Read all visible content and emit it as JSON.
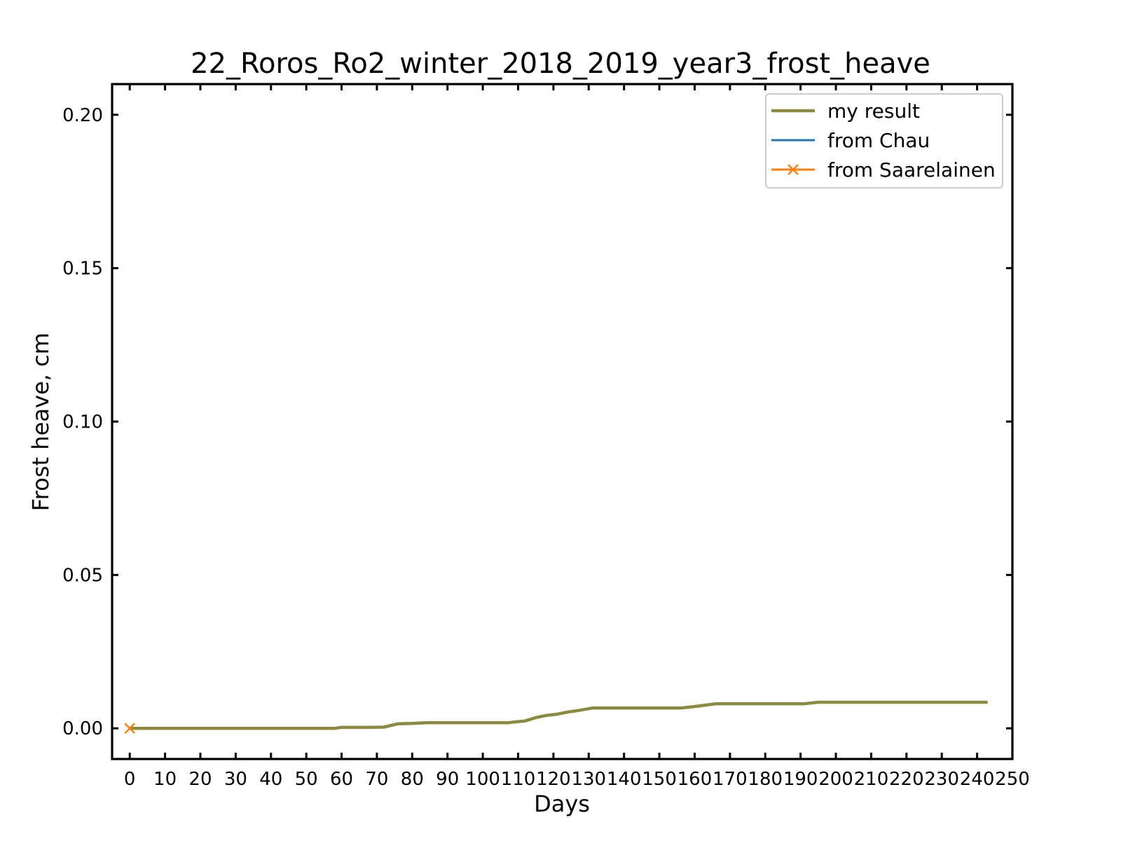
{
  "chart_data": {
    "type": "line",
    "title": "22_Roros_Ro2_winter_2018_2019_year3_frost_heave",
    "xlabel": "Days",
    "ylabel": "Frost heave, cm",
    "xlim": [
      -5,
      250
    ],
    "ylim": [
      -0.01,
      0.21
    ],
    "xticks": [
      0,
      10,
      20,
      30,
      40,
      50,
      60,
      70,
      80,
      90,
      100,
      110,
      120,
      130,
      140,
      150,
      160,
      170,
      180,
      190,
      200,
      210,
      220,
      230,
      240,
      250
    ],
    "yticks": [
      "0.00",
      "0.05",
      "0.10",
      "0.15",
      "0.20"
    ],
    "grid": false,
    "legend_position": "top-right",
    "series": [
      {
        "name": "my result",
        "color": "#8c8a3e",
        "marker": "none",
        "x": [
          0,
          58,
          60,
          67,
          72,
          76,
          80,
          84,
          90,
          100,
          107,
          110,
          112,
          115,
          118,
          121,
          124,
          127,
          131,
          140,
          150,
          156,
          160,
          166,
          170,
          180,
          191,
          195,
          200,
          210,
          220,
          230,
          243
        ],
        "y": [
          0,
          0,
          0.0003,
          0.0003,
          0.0004,
          0.0015,
          0.0016,
          0.0018,
          0.0018,
          0.0018,
          0.0018,
          0.0022,
          0.0024,
          0.0035,
          0.0042,
          0.0046,
          0.0053,
          0.0058,
          0.0066,
          0.0066,
          0.0066,
          0.0066,
          0.0071,
          0.008,
          0.008,
          0.008,
          0.008,
          0.0085,
          0.0085,
          0.0085,
          0.0085,
          0.0085,
          0.0085
        ]
      },
      {
        "name": "from Chau",
        "color": "#1f77b4",
        "marker": "none",
        "x": [],
        "y": []
      },
      {
        "name": "from Saarelainen",
        "color": "#ff7f0e",
        "marker": "x",
        "x": [
          0
        ],
        "y": [
          0
        ]
      }
    ]
  }
}
